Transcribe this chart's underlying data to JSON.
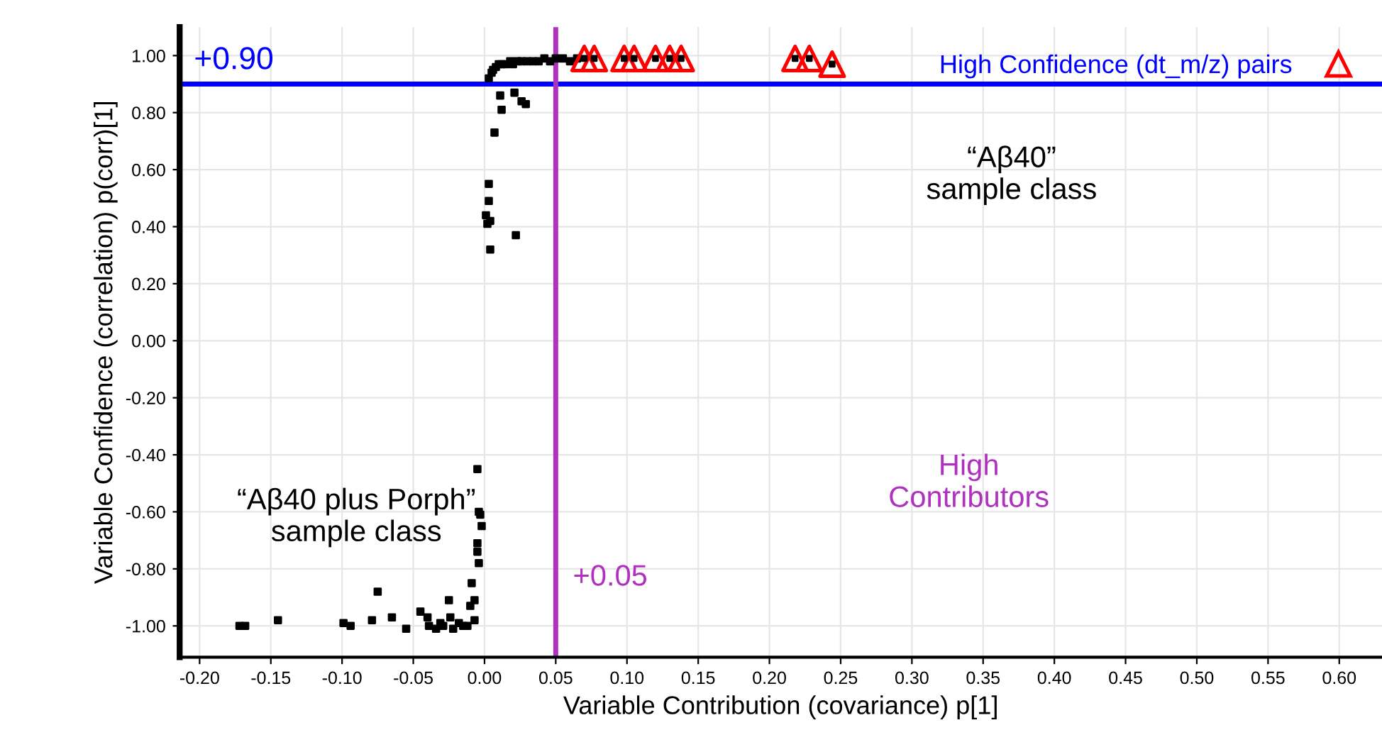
{
  "chart_data": {
    "type": "scatter",
    "xlabel": "Variable Contribution (covariance) p[1]",
    "ylabel": "Variable Confidence (correlation) p(corr)[1]",
    "xlim": [
      -0.214,
      0.63
    ],
    "ylim": [
      -1.11,
      1.1
    ],
    "xticks": [
      {
        "value": -0.2,
        "label": "-0.20"
      },
      {
        "value": -0.15,
        "label": "-0.15"
      },
      {
        "value": -0.1,
        "label": "-0.10"
      },
      {
        "value": -0.05,
        "label": "-0.05"
      },
      {
        "value": 0,
        "label": "0.00"
      },
      {
        "value": 0.05,
        "label": "0.05"
      },
      {
        "value": 0.1,
        "label": "0.10"
      },
      {
        "value": 0.15,
        "label": "0.15"
      },
      {
        "value": 0.2,
        "label": "0.20"
      },
      {
        "value": 0.25,
        "label": "0.25"
      },
      {
        "value": 0.3,
        "label": "0.30"
      },
      {
        "value": 0.35,
        "label": "0.35"
      },
      {
        "value": 0.4,
        "label": "0.40"
      },
      {
        "value": 0.45,
        "label": "0.45"
      },
      {
        "value": 0.5,
        "label": "0.50"
      },
      {
        "value": 0.55,
        "label": "0.55"
      },
      {
        "value": 0.6,
        "label": "0.60"
      }
    ],
    "yticks": [
      {
        "value": -1,
        "label": "-1.00"
      },
      {
        "value": -0.8,
        "label": "-0.80"
      },
      {
        "value": -0.6,
        "label": "-0.60"
      },
      {
        "value": -0.4,
        "label": "-0.40"
      },
      {
        "value": -0.2,
        "label": "-0.20"
      },
      {
        "value": 0,
        "label": "0.00"
      },
      {
        "value": 0.2,
        "label": "0.20"
      },
      {
        "value": 0.4,
        "label": "0.40"
      },
      {
        "value": 0.6,
        "label": "0.60"
      },
      {
        "value": 0.8,
        "label": "0.80"
      },
      {
        "value": 1,
        "label": "1.00"
      }
    ],
    "grid": true,
    "legend": "top right",
    "series": [
      {
        "color": "#000000",
        "marker": "square",
        "x": [
          0.003,
          0.005,
          0.006,
          0.008,
          0.01,
          0.012,
          0.015,
          0.018,
          0.02,
          0.023,
          0.026,
          0.03,
          0.034,
          0.038,
          0.042,
          0.046,
          0.05,
          0.055,
          0.06,
          0.065,
          0.011,
          0.012,
          0.021,
          0.026,
          0.029,
          0.007,
          0.003,
          0.003,
          0.001,
          0.004,
          0.002,
          0.022,
          0.004,
          -0.005,
          -0.004,
          -0.003,
          -0.002,
          -0.005,
          -0.005,
          -0.004,
          -0.009,
          -0.007,
          -0.01,
          -0.007,
          -0.012,
          -0.025,
          -0.075,
          -0.172,
          -0.168,
          -0.145,
          -0.099,
          -0.094,
          -0.079,
          -0.065,
          -0.055,
          -0.045,
          -0.04,
          -0.039,
          -0.034,
          -0.029,
          -0.022,
          -0.015,
          -0.024,
          -0.018,
          -0.031
        ],
        "values": [
          0.92,
          0.94,
          0.95,
          0.96,
          0.97,
          0.97,
          0.97,
          0.98,
          0.97,
          0.98,
          0.98,
          0.98,
          0.98,
          0.98,
          0.99,
          0.98,
          0.99,
          0.99,
          0.98,
          0.99,
          0.86,
          0.81,
          0.87,
          0.84,
          0.83,
          0.73,
          0.55,
          0.49,
          0.44,
          0.42,
          0.41,
          0.37,
          0.32,
          -0.45,
          -0.6,
          -0.61,
          -0.65,
          -0.71,
          -0.74,
          -0.78,
          -0.85,
          -0.91,
          -0.93,
          -0.98,
          -1.0,
          -0.91,
          -0.88,
          -1.0,
          -1.0,
          -0.98,
          -0.99,
          -1.0,
          -0.98,
          -0.97,
          -1.01,
          -0.95,
          -0.97,
          -1.0,
          -1.01,
          -1.0,
          -1.01,
          -1.0,
          -0.97,
          -0.99,
          -0.99
        ]
      },
      {
        "name": "High Confidence (dt_m/z) pairs",
        "color": "#ff0000",
        "marker": "triangle",
        "x": [
          0.07,
          0.077,
          0.098,
          0.105,
          0.12,
          0.13,
          0.138,
          0.218,
          0.228,
          0.244
        ],
        "values": [
          0.99,
          0.99,
          0.99,
          0.99,
          0.99,
          0.99,
          0.99,
          0.99,
          0.99,
          0.97
        ]
      }
    ],
    "ref_lines": [
      {
        "axis": "y",
        "value": 0.9,
        "label": "+0.90",
        "color": "#0000ff"
      },
      {
        "axis": "x",
        "value": 0.05,
        "label": "+0.05",
        "color": "#b030c0"
      }
    ],
    "annotations": [
      "“Aβ40”\nsample class",
      "“Aβ40 plus Porph”\nsample class",
      "High\nContributors"
    ]
  }
}
